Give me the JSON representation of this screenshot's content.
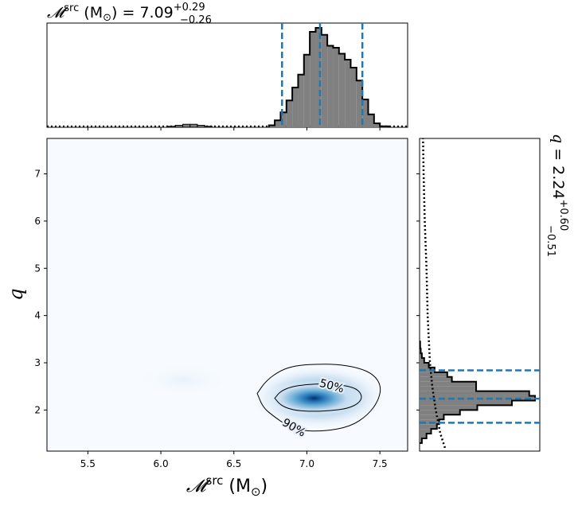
{
  "chart_data": {
    "type": "corner",
    "panels": {
      "marginal_x": {
        "type": "histogram",
        "parameter": "chirp_mass_source",
        "title_main": "𝓜",
        "title_sup": "src",
        "title_unit": " (M",
        "title_sun": "⊙",
        "title_eq": ") = 7.09",
        "title_plus": "+0.29",
        "title_minus": "−0.26",
        "median": 7.09,
        "lower": 6.83,
        "upper": 7.38,
        "bins": [
          [
            6.74,
            6.78,
            0.02
          ],
          [
            6.78,
            6.82,
            0.07
          ],
          [
            6.82,
            6.86,
            0.15
          ],
          [
            6.86,
            6.9,
            0.27
          ],
          [
            6.9,
            6.94,
            0.4
          ],
          [
            6.94,
            6.98,
            0.53
          ],
          [
            6.98,
            7.02,
            0.73
          ],
          [
            7.02,
            7.06,
            0.96
          ],
          [
            7.06,
            7.1,
            1.0
          ],
          [
            7.1,
            7.14,
            0.93
          ],
          [
            7.14,
            7.18,
            0.82
          ],
          [
            7.18,
            7.22,
            0.8
          ],
          [
            7.22,
            7.26,
            0.74
          ],
          [
            7.26,
            7.3,
            0.68
          ],
          [
            7.3,
            7.34,
            0.6
          ],
          [
            7.34,
            7.38,
            0.47
          ],
          [
            7.38,
            7.42,
            0.28
          ],
          [
            7.42,
            7.46,
            0.13
          ],
          [
            7.46,
            7.5,
            0.04
          ],
          [
            7.5,
            7.56,
            0.01
          ]
        ],
        "small_bump": [
          [
            6.05,
            6.1,
            0.01
          ],
          [
            6.1,
            6.15,
            0.02
          ],
          [
            6.15,
            6.2,
            0.03
          ],
          [
            6.2,
            6.25,
            0.03
          ],
          [
            6.25,
            6.3,
            0.02
          ],
          [
            6.3,
            6.35,
            0.01
          ]
        ],
        "prior_level": 0.01
      },
      "joint": {
        "type": "heatmap",
        "xlim": [
          5.22,
          7.69
        ],
        "ylim": [
          1.13,
          7.75
        ],
        "xticks": [
          "5.5",
          "6.0",
          "6.5",
          "7.0",
          "7.5"
        ],
        "xtick_values": [
          5.5,
          6.0,
          6.5,
          7.0,
          7.5
        ],
        "yticks": [
          "2",
          "3",
          "4",
          "5",
          "6",
          "7"
        ],
        "ytick_values": [
          2,
          3,
          4,
          5,
          6,
          7
        ],
        "xlabel_main": "𝓜",
        "xlabel_sup": "src",
        "xlabel_unit": " (M",
        "xlabel_sun": "⊙",
        "xlabel_close": ")",
        "ylabel": "q",
        "peak": {
          "x": 7.05,
          "y": 2.25
        },
        "contours": [
          {
            "label": "50%",
            "label_x": 7.17,
            "label_y": 2.5,
            "points": [
              [
                6.78,
                2.25
              ],
              [
                6.82,
                2.4
              ],
              [
                6.9,
                2.5
              ],
              [
                7.0,
                2.54
              ],
              [
                7.12,
                2.56
              ],
              [
                7.24,
                2.53
              ],
              [
                7.34,
                2.46
              ],
              [
                7.38,
                2.3
              ],
              [
                7.36,
                2.15
              ],
              [
                7.28,
                2.03
              ],
              [
                7.15,
                1.98
              ],
              [
                7.02,
                1.97
              ],
              [
                6.9,
                2.0
              ],
              [
                6.82,
                2.1
              ]
            ]
          },
          {
            "label": "90%",
            "label_x": 6.91,
            "label_y": 1.62,
            "points": [
              [
                6.66,
                2.35
              ],
              [
                6.72,
                2.62
              ],
              [
                6.82,
                2.84
              ],
              [
                6.92,
                2.94
              ],
              [
                7.05,
                2.97
              ],
              [
                7.2,
                2.97
              ],
              [
                7.35,
                2.9
              ],
              [
                7.46,
                2.75
              ],
              [
                7.51,
                2.5
              ],
              [
                7.49,
                2.2
              ],
              [
                7.42,
                1.9
              ],
              [
                7.3,
                1.65
              ],
              [
                7.12,
                1.55
              ],
              [
                6.96,
                1.56
              ],
              [
                6.86,
                1.68
              ],
              [
                6.78,
                1.85
              ],
              [
                6.7,
                2.05
              ]
            ]
          }
        ]
      },
      "marginal_y": {
        "type": "histogram",
        "parameter": "mass_ratio",
        "title_main": "q",
        "title_eq": " = 2.24",
        "title_plus": "+0.60",
        "title_minus": "−0.51",
        "median": 2.24,
        "lower": 1.73,
        "upper": 2.84,
        "bins": [
          [
            1.3,
            1.4,
            0.02
          ],
          [
            1.4,
            1.5,
            0.06
          ],
          [
            1.5,
            1.6,
            0.1
          ],
          [
            1.6,
            1.7,
            0.15
          ],
          [
            1.7,
            1.8,
            0.17
          ],
          [
            1.8,
            1.9,
            0.21
          ],
          [
            1.9,
            2.0,
            0.35
          ],
          [
            2.0,
            2.1,
            0.5
          ],
          [
            2.1,
            2.2,
            0.8
          ],
          [
            2.2,
            2.3,
            1.0
          ],
          [
            2.3,
            2.4,
            0.95
          ],
          [
            2.4,
            2.5,
            0.49
          ],
          [
            2.5,
            2.6,
            0.49
          ],
          [
            2.6,
            2.7,
            0.28
          ],
          [
            2.7,
            2.8,
            0.24
          ],
          [
            2.8,
            2.9,
            0.13
          ],
          [
            2.9,
            3.0,
            0.08
          ],
          [
            3.0,
            3.1,
            0.04
          ],
          [
            3.1,
            3.2,
            0.02
          ],
          [
            3.2,
            3.3,
            0.01
          ],
          [
            3.3,
            3.45,
            0.005
          ]
        ],
        "prior": [
          [
            1.2,
            0.22
          ],
          [
            1.5,
            0.18
          ],
          [
            2.0,
            0.14
          ],
          [
            2.5,
            0.11
          ],
          [
            3.0,
            0.09
          ],
          [
            4.0,
            0.07
          ],
          [
            5.0,
            0.06
          ],
          [
            6.0,
            0.045
          ],
          [
            7.0,
            0.035
          ],
          [
            7.75,
            0.03
          ]
        ]
      }
    },
    "colors": {
      "hist_fill": "#808080",
      "hist_edge": "#000000",
      "quantile_line": "#1f77b4",
      "heat_low": "#f7fbff",
      "heat_high": "#08306b"
    }
  }
}
